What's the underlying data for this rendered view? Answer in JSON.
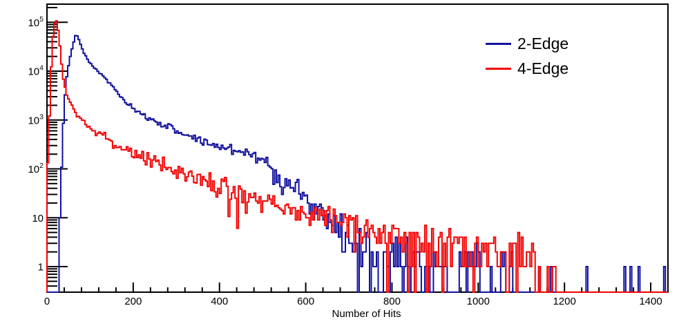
{
  "figure": {
    "background": "#ffffff",
    "frame_color": "#000000"
  },
  "chart_data": {
    "type": "line",
    "style": "histogram-step",
    "title": "",
    "xlabel": "Number of Hits",
    "ylabel": "",
    "xlim": [
      0,
      1440
    ],
    "ylim": [
      0.3,
      235000
    ],
    "yscale": "log",
    "grid": false,
    "legend_position": "top-right",
    "bin_width": 4,
    "noise_seed": 7,
    "x_major_ticks": [
      {
        "value": 0,
        "label": "0"
      },
      {
        "value": 200,
        "label": "200"
      },
      {
        "value": 400,
        "label": "400"
      },
      {
        "value": 600,
        "label": "600"
      },
      {
        "value": 800,
        "label": "800"
      },
      {
        "value": 1000,
        "label": "1000"
      },
      {
        "value": 1200,
        "label": "1200"
      },
      {
        "value": 1400,
        "label": "1400"
      }
    ],
    "x_minor_step": 40,
    "y_major_ticks": [
      {
        "value": 1,
        "base": "1",
        "exp": ""
      },
      {
        "value": 10,
        "base": "10",
        "exp": ""
      },
      {
        "value": 100,
        "base": "10",
        "exp": "2"
      },
      {
        "value": 1000,
        "base": "10",
        "exp": "3"
      },
      {
        "value": 10000,
        "base": "10",
        "exp": "4"
      },
      {
        "value": 100000,
        "base": "10",
        "exp": "5"
      }
    ],
    "series": [
      {
        "name": "2-Edge",
        "color": "#10109e",
        "peak": {
          "x": 67,
          "y": 56000
        },
        "envelope": [
          [
            0,
            0
          ],
          [
            24,
            0
          ],
          [
            28,
            3
          ],
          [
            32,
            40
          ],
          [
            36,
            400
          ],
          [
            40,
            2200
          ],
          [
            44,
            5500
          ],
          [
            48,
            10000
          ],
          [
            52,
            16000
          ],
          [
            56,
            24000
          ],
          [
            60,
            34000
          ],
          [
            64,
            46000
          ],
          [
            67,
            56000
          ],
          [
            70,
            53000
          ],
          [
            74,
            44000
          ],
          [
            80,
            31000
          ],
          [
            87,
            22500
          ],
          [
            95,
            16800
          ],
          [
            103,
            13600
          ],
          [
            112,
            11200
          ],
          [
            122,
            9200
          ],
          [
            131,
            7700
          ],
          [
            141,
            6300
          ],
          [
            151,
            5000
          ],
          [
            161,
            3900
          ],
          [
            171,
            3000
          ],
          [
            181,
            2400
          ],
          [
            191,
            1950
          ],
          [
            201,
            1650
          ],
          [
            211,
            1420
          ],
          [
            226,
            1190
          ],
          [
            241,
            1030
          ],
          [
            256,
            910
          ],
          [
            271,
            800
          ],
          [
            286,
            700
          ],
          [
            301,
            610
          ],
          [
            316,
            530
          ],
          [
            331,
            468
          ],
          [
            346,
            415
          ],
          [
            361,
            370
          ],
          [
            376,
            332
          ],
          [
            391,
            300
          ],
          [
            406,
            276
          ],
          [
            421,
            259
          ],
          [
            436,
            248
          ],
          [
            451,
            238
          ],
          [
            463,
            224
          ],
          [
            475,
            203
          ],
          [
            487,
            178
          ],
          [
            499,
            150
          ],
          [
            511,
            124
          ],
          [
            523,
            102
          ],
          [
            535,
            84
          ],
          [
            547,
            67
          ],
          [
            559,
            53
          ],
          [
            571,
            42
          ],
          [
            583,
            33
          ],
          [
            595,
            26
          ],
          [
            607,
            21
          ],
          [
            619,
            16.5
          ],
          [
            631,
            13
          ],
          [
            643,
            10.5
          ],
          [
            655,
            8.5
          ],
          [
            667,
            7
          ],
          [
            679,
            5.8
          ],
          [
            691,
            4.8
          ],
          [
            705,
            3.9
          ],
          [
            719,
            3.2
          ],
          [
            733,
            2.7
          ],
          [
            747,
            2.3
          ],
          [
            761,
            2
          ],
          [
            775,
            1.75
          ],
          [
            790,
            1.52
          ],
          [
            810,
            1.3
          ],
          [
            830,
            1.15
          ],
          [
            855,
            1
          ],
          [
            885,
            0.85
          ],
          [
            915,
            0.75
          ],
          [
            950,
            0.65
          ],
          [
            990,
            0.55
          ],
          [
            1030,
            0.48
          ],
          [
            1070,
            0.42
          ],
          [
            1110,
            0.37
          ],
          [
            1150,
            0.33
          ],
          [
            1180,
            0.3
          ],
          [
            1184,
            0
          ],
          [
            1440,
            0
          ]
        ],
        "spikes": [
          [
            1250,
            1
          ],
          [
            1338,
            1
          ],
          [
            1352,
            1
          ],
          [
            1371,
            1
          ],
          [
            1430,
            1
          ]
        ]
      },
      {
        "name": "4-Edge",
        "color": "#f30000",
        "peak": {
          "x": 20,
          "y": 113000
        },
        "envelope": [
          [
            0,
            140
          ],
          [
            3,
            140
          ],
          [
            5,
            600
          ],
          [
            7,
            2500
          ],
          [
            9,
            8000
          ],
          [
            11,
            20000
          ],
          [
            13,
            40000
          ],
          [
            15,
            65000
          ],
          [
            17,
            88000
          ],
          [
            19,
            106000
          ],
          [
            21,
            113000
          ],
          [
            23,
            103000
          ],
          [
            25,
            80000
          ],
          [
            27,
            58000
          ],
          [
            29,
            40000
          ],
          [
            31,
            26000
          ],
          [
            33,
            17000
          ],
          [
            35,
            11500
          ],
          [
            38,
            7200
          ],
          [
            41,
            4900
          ],
          [
            44,
            3800
          ],
          [
            48,
            3000
          ],
          [
            52,
            2500
          ],
          [
            56,
            2120
          ],
          [
            60,
            1820
          ],
          [
            65,
            1540
          ],
          [
            70,
            1330
          ],
          [
            76,
            1140
          ],
          [
            82,
            1000
          ],
          [
            88,
            880
          ],
          [
            95,
            775
          ],
          [
            102,
            695
          ],
          [
            110,
            615
          ],
          [
            118,
            550
          ],
          [
            126,
            492
          ],
          [
            134,
            443
          ],
          [
            144,
            391
          ],
          [
            154,
            347
          ],
          [
            164,
            308
          ],
          [
            174,
            274
          ],
          [
            184,
            246
          ],
          [
            194,
            222
          ],
          [
            204,
            201
          ],
          [
            214,
            183
          ],
          [
            226,
            164
          ],
          [
            238,
            148
          ],
          [
            250,
            134
          ],
          [
            262,
            122
          ],
          [
            274,
            111
          ],
          [
            286,
            101
          ],
          [
            298,
            92
          ],
          [
            310,
            84
          ],
          [
            322,
            77
          ],
          [
            334,
            71
          ],
          [
            346,
            65
          ],
          [
            358,
            60
          ],
          [
            370,
            55
          ],
          [
            382,
            51
          ],
          [
            394,
            47
          ],
          [
            406,
            43.5
          ],
          [
            418,
            40
          ],
          [
            430,
            37
          ],
          [
            442,
            34.5
          ],
          [
            454,
            32
          ],
          [
            466,
            29.5
          ],
          [
            478,
            27.5
          ],
          [
            490,
            25.5
          ],
          [
            502,
            24
          ],
          [
            514,
            22.5
          ],
          [
            531,
            20.5
          ],
          [
            548,
            18.5
          ],
          [
            565,
            16.8
          ],
          [
            582,
            15.2
          ],
          [
            599,
            13.8
          ],
          [
            616,
            12.6
          ],
          [
            633,
            11.4
          ],
          [
            650,
            10.4
          ],
          [
            670,
            9.3
          ],
          [
            690,
            8.4
          ],
          [
            710,
            7.6
          ],
          [
            730,
            6.9
          ],
          [
            750,
            6.2
          ],
          [
            775,
            5.5
          ],
          [
            800,
            5
          ],
          [
            830,
            4.4
          ],
          [
            860,
            3.9
          ],
          [
            890,
            3.5
          ],
          [
            920,
            3.2
          ],
          [
            950,
            2.9
          ],
          [
            980,
            2.7
          ],
          [
            1010,
            2.5
          ],
          [
            1040,
            2.3
          ],
          [
            1065,
            2.1
          ],
          [
            1085,
            1.9
          ],
          [
            1100,
            1.7
          ],
          [
            1112,
            1.4
          ],
          [
            1124,
            1
          ],
          [
            1140,
            0.72
          ],
          [
            1158,
            0.5
          ],
          [
            1172,
            0.4
          ],
          [
            1182,
            0.3
          ],
          [
            1186,
            0
          ],
          [
            1440,
            0
          ]
        ],
        "spikes": []
      }
    ]
  }
}
